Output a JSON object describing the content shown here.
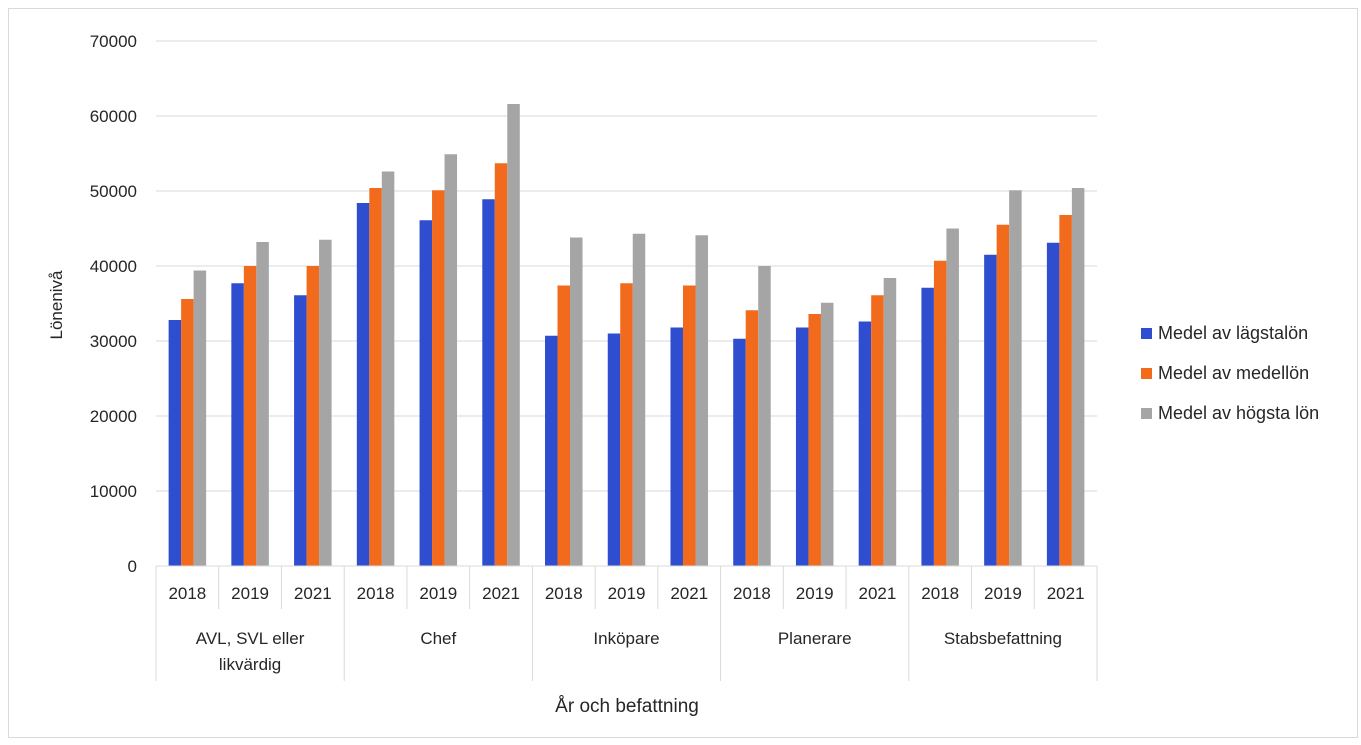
{
  "chart_data": {
    "type": "bar",
    "xlabel": "År och befattning",
    "ylabel": "Lönenivå",
    "ylim": [
      0,
      70000
    ],
    "yticks": [
      0,
      10000,
      20000,
      30000,
      40000,
      50000,
      60000,
      70000
    ],
    "grid": true,
    "legend_position": "right",
    "groups": [
      {
        "label": "AVL, SVL eller likvärdig",
        "label_lines": [
          "AVL, SVL eller",
          "likvärdig"
        ],
        "years": [
          "2018",
          "2019",
          "2021"
        ]
      },
      {
        "label": "Chef",
        "label_lines": [
          "Chef"
        ],
        "years": [
          "2018",
          "2019",
          "2021"
        ]
      },
      {
        "label": "Inköpare",
        "label_lines": [
          "Inköpare"
        ],
        "years": [
          "2018",
          "2019",
          "2021"
        ]
      },
      {
        "label": "Planerare",
        "label_lines": [
          "Planerare"
        ],
        "years": [
          "2018",
          "2019",
          "2021"
        ]
      },
      {
        "label": "Stabsbefattning",
        "label_lines": [
          "Stabsbefattning"
        ],
        "years": [
          "2018",
          "2019",
          "2021"
        ]
      }
    ],
    "series": [
      {
        "name": "Medel av lägstalön",
        "color": "#2e4ecf",
        "values": [
          32800,
          37700,
          36100,
          48400,
          46100,
          48900,
          30700,
          31000,
          31800,
          30300,
          31800,
          32600,
          37100,
          41500,
          43100
        ]
      },
      {
        "name": "Medel av medellön",
        "color": "#f26a1b",
        "values": [
          35600,
          40000,
          40000,
          50400,
          50100,
          53700,
          37400,
          37700,
          37400,
          34100,
          33600,
          36100,
          40700,
          45500,
          46800
        ]
      },
      {
        "name": "Medel av högsta lön",
        "color": "#a5a5a5",
        "values": [
          39400,
          43200,
          43500,
          52600,
          54900,
          61600,
          43800,
          44300,
          44100,
          40000,
          35100,
          38400,
          45000,
          50100,
          50400
        ]
      }
    ]
  }
}
